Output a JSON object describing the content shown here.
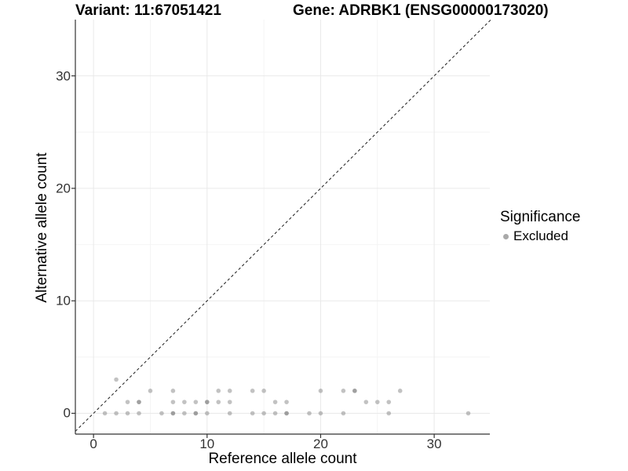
{
  "titles": {
    "left": "Variant: 11:67051421",
    "right": "Gene: ADRBK1 (ENSG00000173020)"
  },
  "legend": {
    "title": "Significance",
    "items": [
      {
        "label": "Excluded",
        "color": "#a9a9a9"
      }
    ]
  },
  "chart_data": {
    "type": "scatter",
    "title": "Variant: 11:67051421   Gene: ADRBK1 (ENSG00000173020)",
    "xlabel": "Reference allele count",
    "ylabel": "Alternative allele count",
    "xlim": [
      -1.6,
      34.9
    ],
    "ylim": [
      -1.85,
      35.0
    ],
    "x_ticks": [
      0,
      10,
      20,
      30
    ],
    "y_ticks": [
      0,
      10,
      20,
      30
    ],
    "x_minor_gridlines": [
      5,
      15,
      25
    ],
    "y_minor_gridlines": [
      5,
      15,
      25
    ],
    "grid": true,
    "legend_position": "right",
    "identity_line": {
      "style": "dashed",
      "equation": "y = x",
      "from": -1.6,
      "to": 35.2
    },
    "series": [
      {
        "name": "Excluded",
        "color": "#777777",
        "opacity": 0.45,
        "points": [
          [
            1,
            0
          ],
          [
            2,
            0
          ],
          [
            3,
            0
          ],
          [
            4,
            0
          ],
          [
            6,
            0
          ],
          [
            7,
            0
          ],
          [
            7,
            0
          ],
          [
            8,
            0
          ],
          [
            9,
            0
          ],
          [
            9,
            0
          ],
          [
            10,
            0
          ],
          [
            12,
            0
          ],
          [
            14,
            0
          ],
          [
            15,
            0
          ],
          [
            16,
            0
          ],
          [
            17,
            0
          ],
          [
            17,
            0
          ],
          [
            19,
            0
          ],
          [
            20,
            0
          ],
          [
            22,
            0
          ],
          [
            26,
            0
          ],
          [
            33,
            0
          ],
          [
            3,
            1
          ],
          [
            4,
            1
          ],
          [
            4,
            1
          ],
          [
            7,
            1
          ],
          [
            8,
            1
          ],
          [
            9,
            1
          ],
          [
            10,
            1
          ],
          [
            10,
            1
          ],
          [
            11,
            1
          ],
          [
            12,
            1
          ],
          [
            16,
            1
          ],
          [
            17,
            1
          ],
          [
            24,
            1
          ],
          [
            25,
            1
          ],
          [
            26,
            1
          ],
          [
            5,
            2
          ],
          [
            7,
            2
          ],
          [
            11,
            2
          ],
          [
            12,
            2
          ],
          [
            14,
            2
          ],
          [
            15,
            2
          ],
          [
            20,
            2
          ],
          [
            22,
            2
          ],
          [
            23,
            2
          ],
          [
            23,
            2
          ],
          [
            27,
            2
          ],
          [
            2,
            3
          ]
        ]
      }
    ],
    "style": {
      "background": "#ffffff",
      "grid_major_color": "#e9e9e9",
      "grid_minor_color": "#f4f4f4",
      "axis_line_color": "#333333",
      "tick_color": "#333333",
      "identity_line_color": "#1a1a1a",
      "point_radius_px": 2.8
    }
  }
}
